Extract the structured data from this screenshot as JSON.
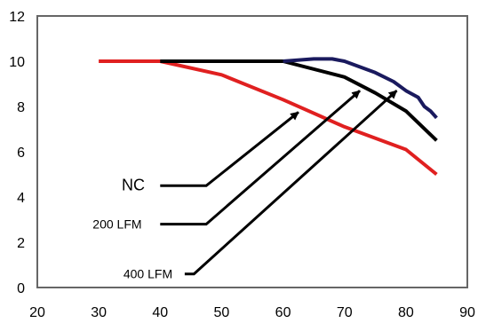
{
  "chart_data": {
    "type": "line",
    "title": "",
    "xlabel": "",
    "ylabel": "",
    "xlim": [
      20,
      90
    ],
    "ylim": [
      0,
      12
    ],
    "x_ticks": [
      20,
      30,
      40,
      50,
      60,
      70,
      80,
      90
    ],
    "y_ticks": [
      0,
      2,
      4,
      6,
      8,
      10,
      12
    ],
    "grid": false,
    "series": [
      {
        "color": "#e02020",
        "points": [
          [
            30,
            10
          ],
          [
            40,
            10
          ],
          [
            50,
            9.4
          ],
          [
            60,
            8.3
          ],
          [
            70,
            7.1
          ],
          [
            80,
            6.1
          ],
          [
            85,
            5.0
          ]
        ]
      },
      {
        "color": "#000000",
        "points": [
          [
            40,
            10
          ],
          [
            60,
            10
          ],
          [
            70,
            9.3
          ],
          [
            75,
            8.6
          ],
          [
            80,
            7.8
          ],
          [
            85,
            6.5
          ]
        ]
      },
      {
        "color": "#1a1a5e",
        "points": [
          [
            60,
            10
          ],
          [
            65,
            10.1
          ],
          [
            68,
            10.1
          ],
          [
            70,
            10.0
          ],
          [
            75,
            9.5
          ],
          [
            78,
            9.1
          ],
          [
            80,
            8.7
          ],
          [
            82,
            8.4
          ],
          [
            83,
            8.0
          ],
          [
            84,
            7.8
          ],
          [
            85,
            7.5
          ]
        ]
      }
    ],
    "annotations": [
      {
        "text": "NC",
        "label_at": [
          37.5,
          4.5
        ],
        "font_size": 18,
        "path": [
          [
            40,
            4.5
          ],
          [
            47.5,
            4.5
          ],
          [
            62.5,
            7.75
          ]
        ]
      },
      {
        "text": "200 LFM",
        "label_at": [
          37,
          2.8
        ],
        "font_size": 14,
        "path": [
          [
            40,
            2.8
          ],
          [
            47.5,
            2.8
          ],
          [
            72.5,
            8.7
          ]
        ]
      },
      {
        "text": "400 LFM",
        "label_at": [
          42,
          0.6
        ],
        "font_size": 14,
        "path": [
          [
            44,
            0.6
          ],
          [
            45.5,
            0.6
          ],
          [
            78.5,
            8.7
          ]
        ]
      }
    ]
  }
}
